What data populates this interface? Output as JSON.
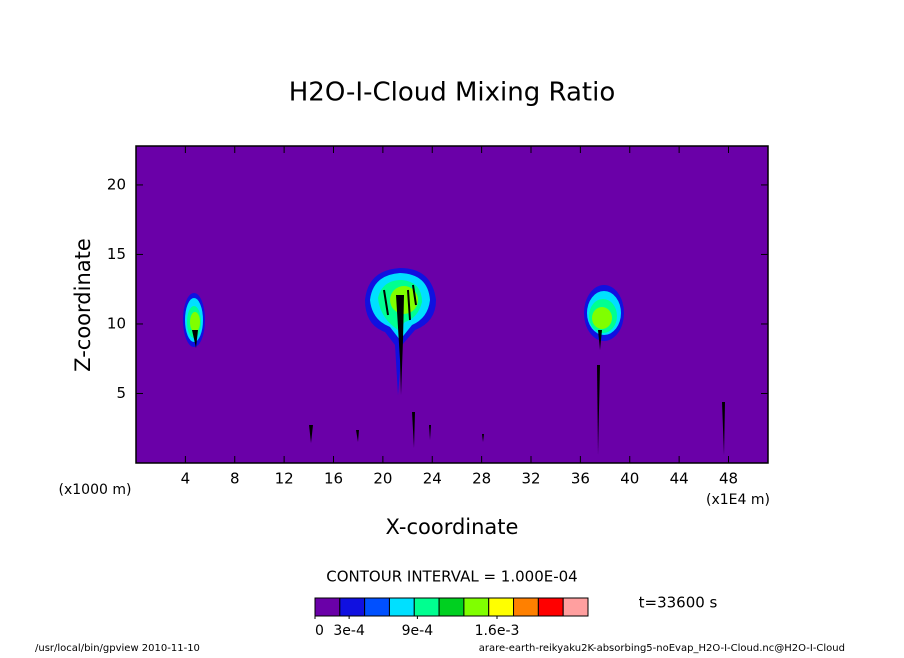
{
  "chart_data": {
    "type": "contour",
    "title": "H2O-I-Cloud Mixing Ratio",
    "x_label": "X-coordinate",
    "y_label": "Z-coordinate",
    "x_unit": "(x1E4 m)",
    "y_unit": "(x1000 m)",
    "xlim": [
      0,
      51.2
    ],
    "ylim": [
      0,
      22.8
    ],
    "xticks": [
      4,
      8,
      12,
      16,
      20,
      24,
      28,
      32,
      36,
      40,
      44,
      48
    ],
    "yticks": [
      5,
      10,
      15,
      20
    ],
    "background_color": "#6a00a8",
    "contour_interval": "CONTOUR INTERVAL = 1.000E-04",
    "time": "t=33600 s",
    "colorbar": {
      "colors": [
        "#6a00a8",
        "#1010e0",
        "#0050ff",
        "#00e0ff",
        "#00ff90",
        "#00d020",
        "#80ff00",
        "#ffff00",
        "#ff8000",
        "#ff0000",
        "#ff9f9f"
      ],
      "lim": [
        0,
        0.0024
      ],
      "ticks": [
        {
          "value": 0,
          "label": "0"
        },
        {
          "value": 0.0003,
          "label": "3e-4"
        },
        {
          "value": 0.0009,
          "label": "9e-4"
        },
        {
          "value": 0.0016,
          "label": "1.6e-3"
        }
      ]
    },
    "footer_left": "/usr/local/bin/gpview  2010-11-10",
    "footer_right": "arare-earth-reikyaku2K-absorbing5-noEvap_H2O-I-Cloud.nc@H2O-I-Cloud"
  }
}
